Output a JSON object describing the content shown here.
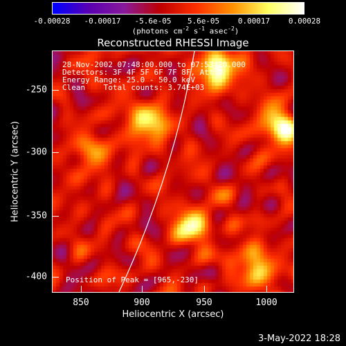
{
  "chart_data": {
    "type": "heatmap",
    "title": "Reconstructed RHESSI Image",
    "xlabel": "Heliocentric X (arcsec)",
    "ylabel": "Heliocentric Y (arcsec)",
    "xlim": [
      830,
      1024
    ],
    "ylim": [
      -418,
      -218
    ],
    "x_ticks": [
      850,
      900,
      950,
      1000
    ],
    "y_ticks": [
      -250,
      -300,
      -350,
      -400
    ],
    "colorbar": {
      "ticks": [
        "-0.00028",
        "-0.00017",
        "-5.6e-05",
        "5.6e-05",
        "0.00017",
        "0.00028"
      ],
      "range": [
        -0.00028,
        0.00028
      ],
      "units_text": "(photons cm",
      "units_exp1": "-2",
      "units_mid": " s",
      "units_exp2": "-1",
      "units_mid2": " asec",
      "units_exp3": "-2",
      "units_end": ")",
      "colors": [
        "#0000ff",
        "#5a00b4",
        "#8a1a9a",
        "#c00000",
        "#ff3000",
        "#ff9000",
        "#ffff60",
        "#ffffff"
      ]
    },
    "annotations": [
      "28-Nov-2002 07:48:00.000 to 07:53:20.000",
      "Detectors: 3F 4F 5F 6F 7F 8F, Att 0",
      "Energy Range: 25.0 - 50.0 keV",
      "Clean    Total counts: 3.74E+03"
    ],
    "peak_label": "Position of Peak = [965,-230]",
    "grid": false,
    "bright_sources": [
      {
        "x": 960,
        "y": -232,
        "value": 0.00028
      },
      {
        "x": 905,
        "y": -275,
        "value": 0.00022
      },
      {
        "x": 1010,
        "y": -280,
        "value": 0.00025
      },
      {
        "x": 940,
        "y": -362,
        "value": 0.00022
      },
      {
        "x": 990,
        "y": -395,
        "value": 0.0002
      },
      {
        "x": 860,
        "y": -300,
        "value": 0.00015
      }
    ]
  },
  "datestamp": "3-May-2022 18:28"
}
